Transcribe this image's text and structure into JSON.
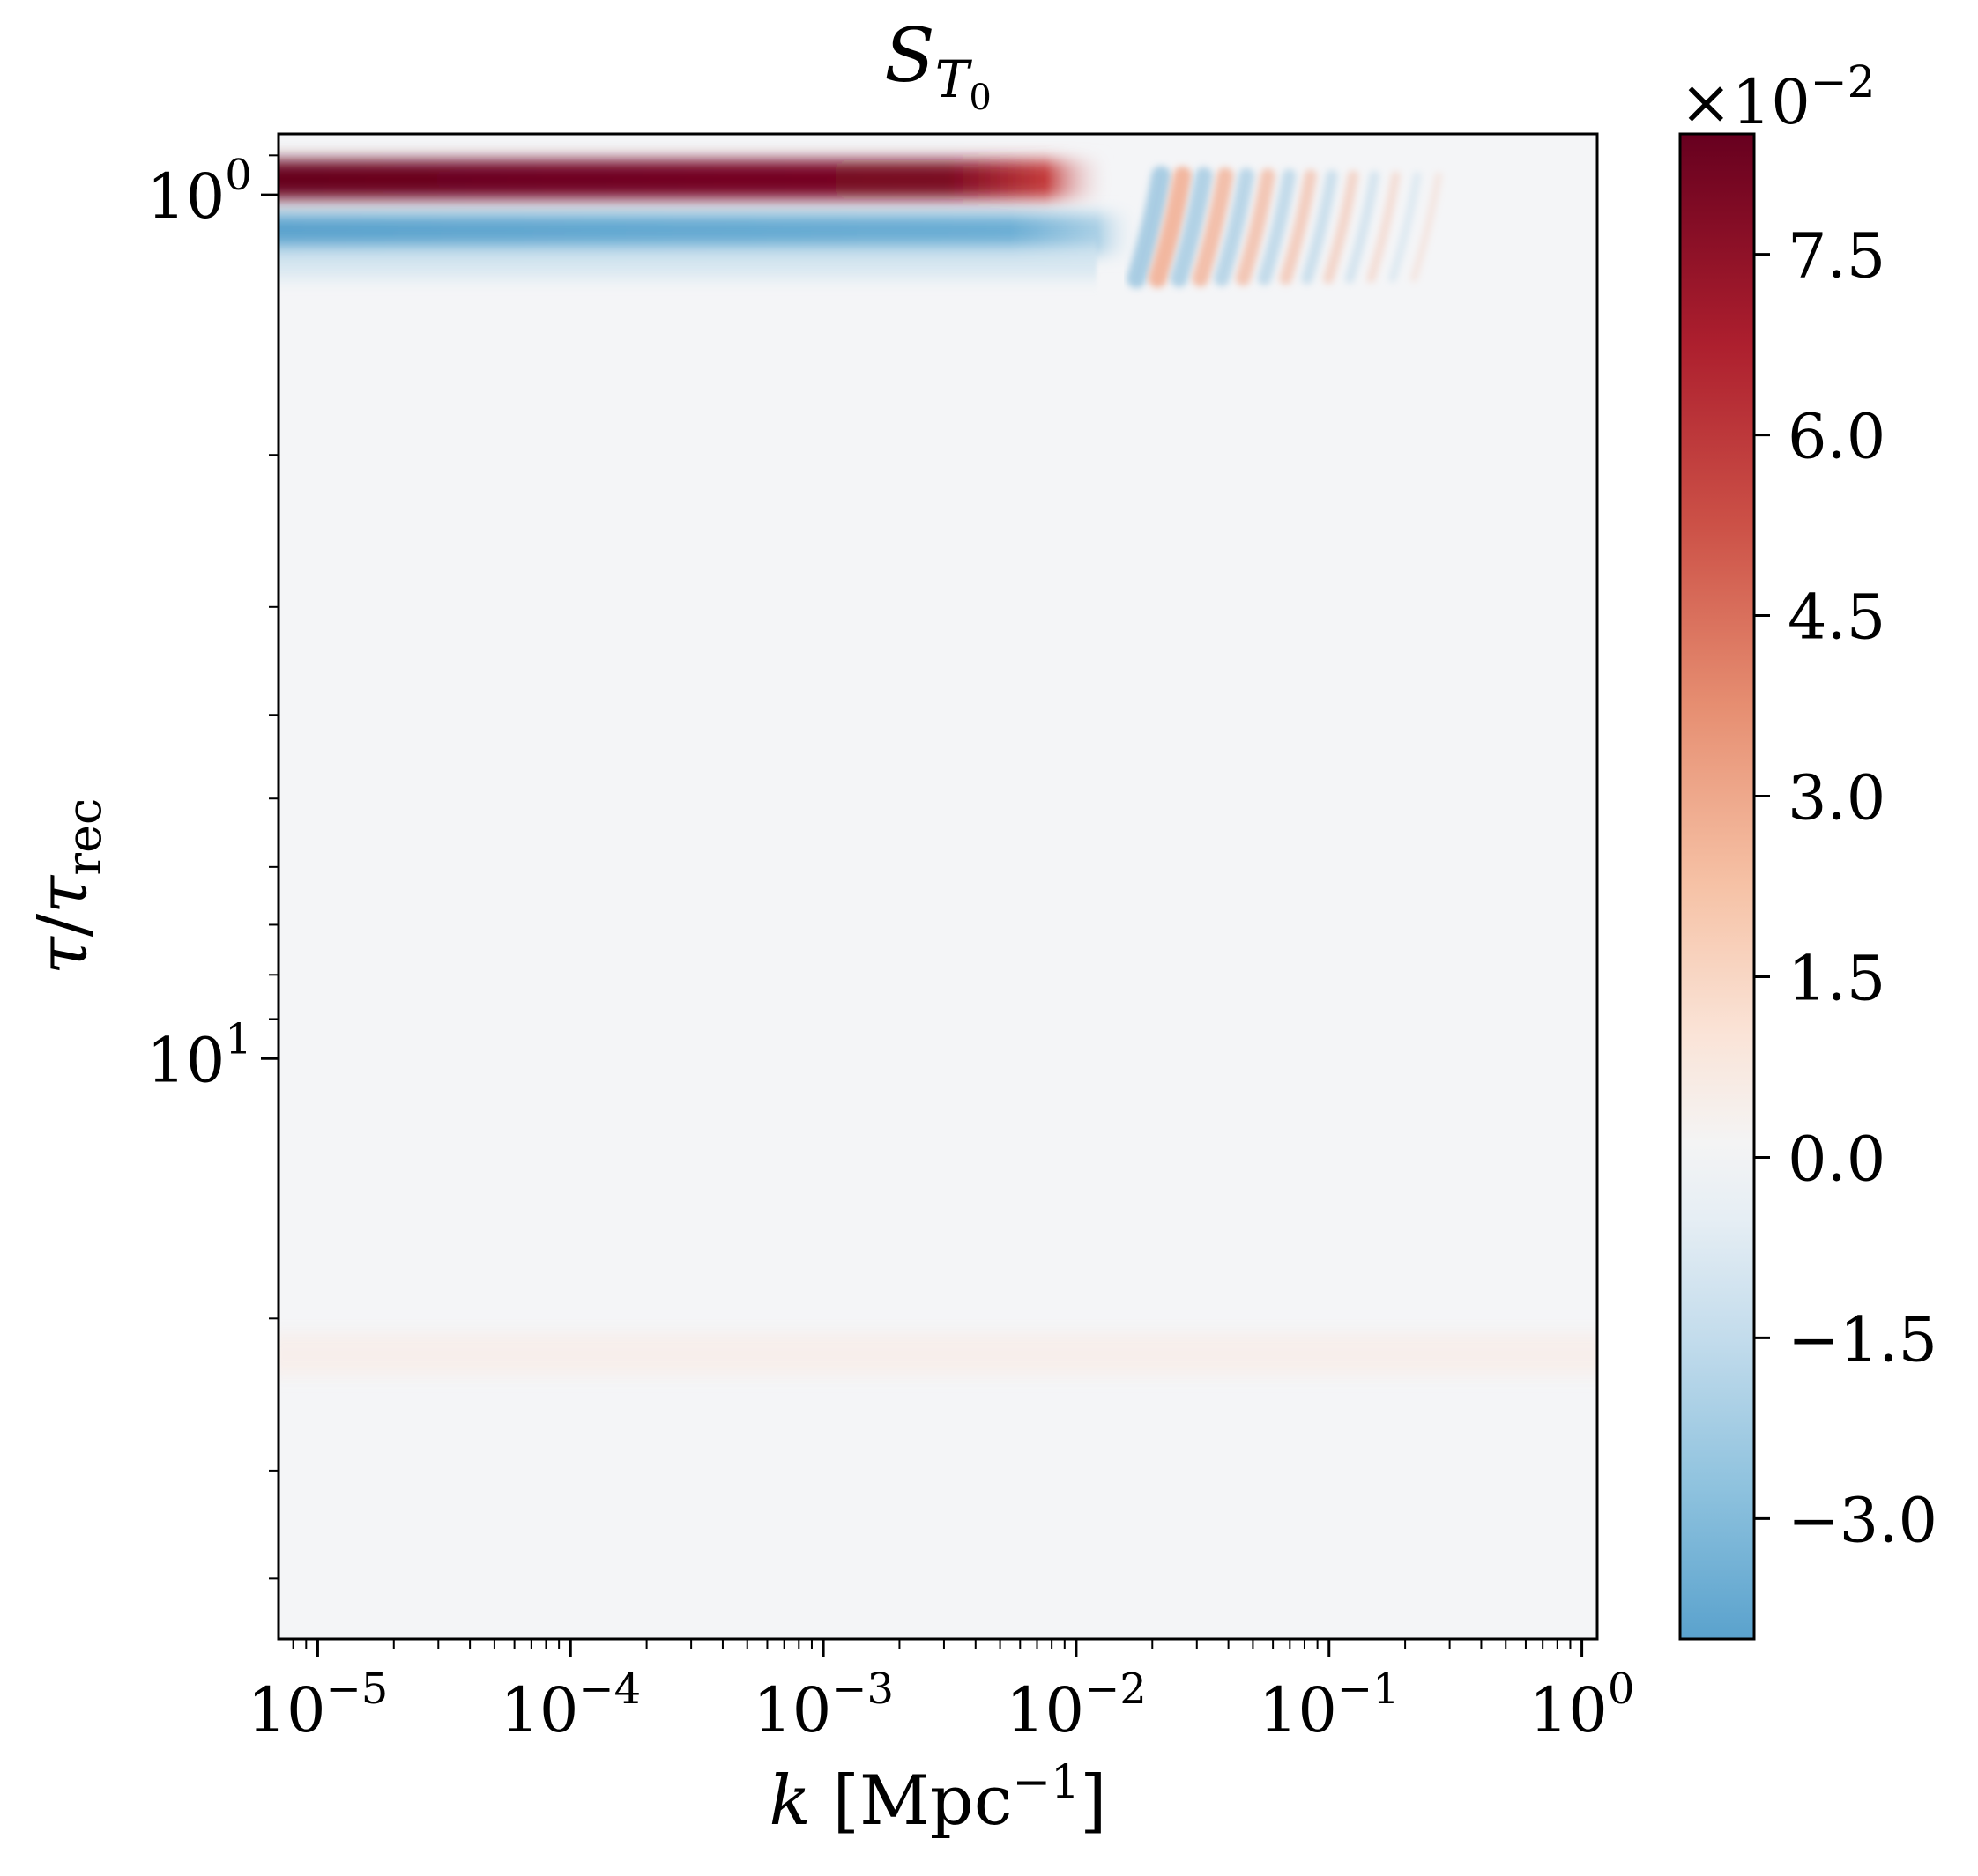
{
  "chart_data": {
    "type": "heatmap",
    "title": {
      "base": "S",
      "sub_base": "T",
      "sub_sub": "0"
    },
    "xlabel": {
      "var": "k",
      "unit_open": " [Mpc",
      "unit_exp": "−1",
      "unit_close": "]"
    },
    "ylabel": {
      "num": "τ",
      "slash": "/",
      "den": "τ",
      "den_sub": "rec"
    },
    "x_scale": "log",
    "y_scale": "log",
    "y_inverted": true,
    "xlim": [
      7e-06,
      1.15
    ],
    "ylim": [
      0.85,
      47
    ],
    "x_ticks": [
      {
        "value": 1e-05,
        "base": "10",
        "exp": "−5"
      },
      {
        "value": 0.0001,
        "base": "10",
        "exp": "−4"
      },
      {
        "value": 0.001,
        "base": "10",
        "exp": "−3"
      },
      {
        "value": 0.01,
        "base": "10",
        "exp": "−2"
      },
      {
        "value": 0.1,
        "base": "10",
        "exp": "−1"
      },
      {
        "value": 1,
        "base": "10",
        "exp": "0"
      }
    ],
    "y_ticks": [
      {
        "value": 1,
        "base": "10",
        "exp": "0"
      },
      {
        "value": 10,
        "base": "10",
        "exp": "1"
      }
    ],
    "colorbar": {
      "cmap": "RdBu_r",
      "range": [
        -4.0,
        8.5
      ],
      "multiplier": {
        "prefix": "×10",
        "exp": "−2"
      },
      "ticks": [
        {
          "value": 7.5,
          "label": "7.5"
        },
        {
          "value": 6.0,
          "label": "6.0"
        },
        {
          "value": 4.5,
          "label": "4.5"
        },
        {
          "value": 3.0,
          "label": "3.0"
        },
        {
          "value": 1.5,
          "label": "1.5"
        },
        {
          "value": 0.0,
          "label": "0.0"
        },
        {
          "value": -1.5,
          "label": "−1.5"
        },
        {
          "value": -3.0,
          "label": "−3.0"
        }
      ]
    },
    "features": [
      {
        "kind": "band",
        "tau": 0.96,
        "k_max": 0.014,
        "value": 8.5
      },
      {
        "kind": "band",
        "tau": 1.11,
        "k_max": 0.018,
        "value": -3.5
      },
      {
        "kind": "oscillations",
        "tau_range": [
          0.95,
          1.25
        ],
        "k_range": [
          0.02,
          0.25
        ],
        "amplitude": 1.5
      },
      {
        "kind": "faint_band",
        "tau": 22,
        "value": 0.3
      }
    ]
  }
}
